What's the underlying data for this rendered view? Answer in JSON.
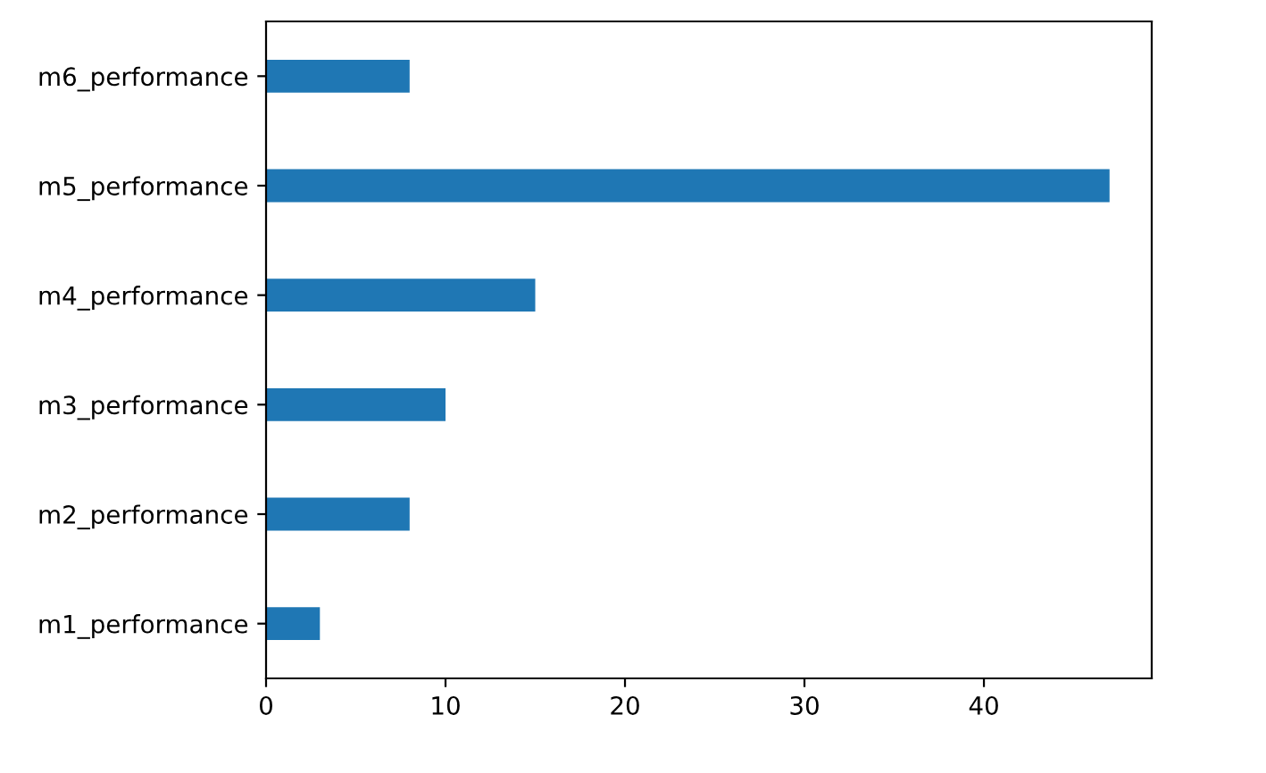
{
  "chart_data": {
    "type": "bar",
    "orientation": "horizontal",
    "categories": [
      "m6_performance",
      "m5_performance",
      "m4_performance",
      "m3_performance",
      "m2_performance",
      "m1_performance"
    ],
    "values": [
      8,
      47,
      15,
      10,
      8,
      3
    ],
    "color": "#1f77b4",
    "xlim": [
      0,
      49.35
    ],
    "xticks": [
      0,
      10,
      20,
      30,
      40
    ],
    "grid": false
  }
}
